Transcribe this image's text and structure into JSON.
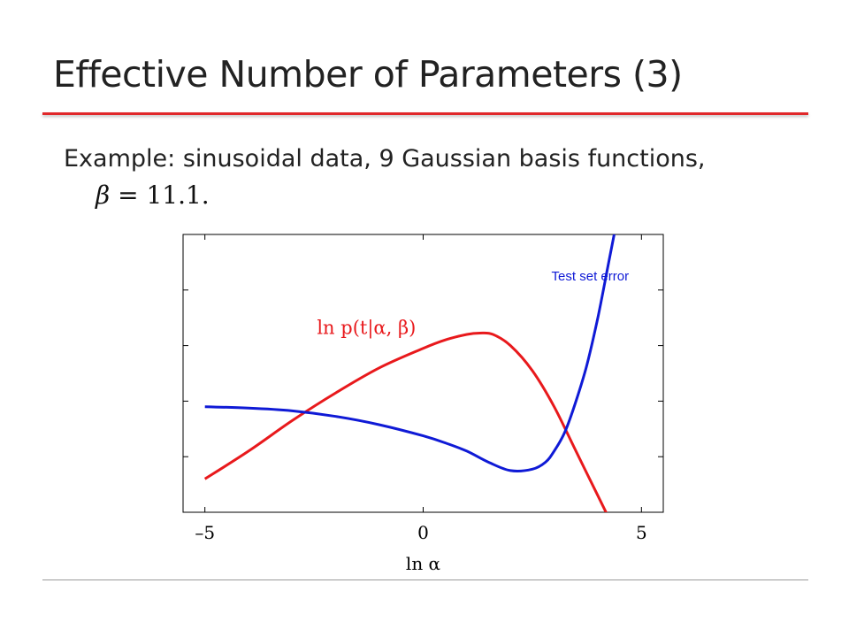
{
  "slide": {
    "title": "Effective Number of Parameters (3)",
    "subtitle": "Example: sinusoidal data, 9 Gaussian basis functions,",
    "equation": {
      "symbol": "β",
      "rest": " = 11.1."
    }
  },
  "chart_data": {
    "type": "line",
    "xlabel": "ln α",
    "ylabel": "",
    "xlim": [
      -5.5,
      5.5
    ],
    "ylim": [
      0,
      1
    ],
    "xticks": [
      -5,
      0,
      5
    ],
    "xtick_labels": [
      "–5",
      "0",
      "5"
    ],
    "grid": false,
    "series": [
      {
        "name": "ln p(t|α, β)",
        "color": "#e8191c",
        "x": [
          -5,
          -4,
          -3,
          -2,
          -1,
          0,
          0.5,
          1,
          1.3,
          1.6,
          2,
          2.5,
          3,
          3.5,
          4,
          4.5
        ],
        "y": [
          0.12,
          0.22,
          0.33,
          0.43,
          0.52,
          0.59,
          0.62,
          0.64,
          0.645,
          0.64,
          0.6,
          0.51,
          0.38,
          0.22,
          0.06,
          -0.1
        ]
      },
      {
        "name": "Test  set error",
        "color": "#0f1ad6",
        "x": [
          -5,
          -4,
          -3,
          -2,
          -1,
          0,
          0.5,
          1,
          1.5,
          2,
          2.5,
          2.8,
          3,
          3.25,
          3.5,
          3.75,
          4,
          4.25,
          4.5
        ],
        "y": [
          0.38,
          0.375,
          0.365,
          0.345,
          0.315,
          0.275,
          0.25,
          0.22,
          0.18,
          0.15,
          0.155,
          0.18,
          0.22,
          0.29,
          0.4,
          0.53,
          0.7,
          0.9,
          1.1
        ]
      }
    ],
    "annotations": [
      {
        "text": "Test  set error",
        "series": "Test  set error",
        "at": [
          3.8,
          0.85
        ]
      },
      {
        "text": "ln p(t|α, β)",
        "series": "ln p(t|α, β)",
        "at": [
          -1.3,
          0.68
        ]
      }
    ]
  }
}
